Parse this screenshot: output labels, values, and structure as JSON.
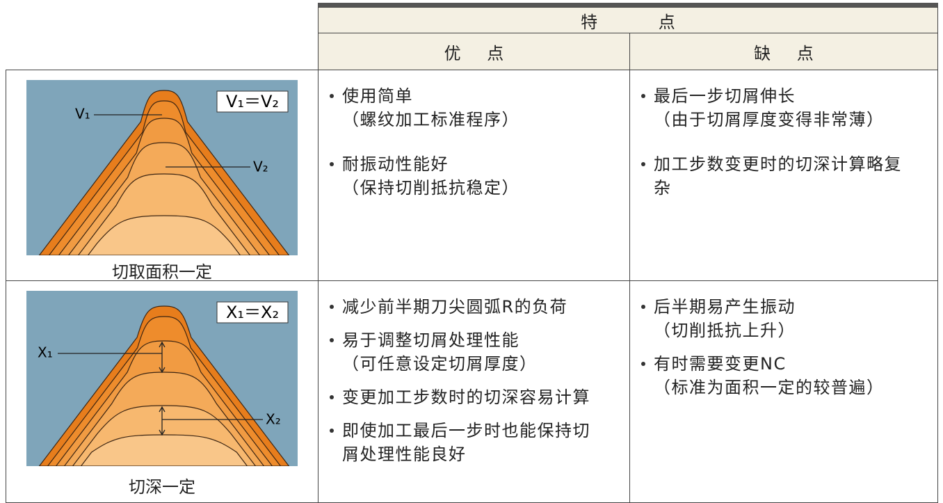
{
  "header": {
    "title": "特 点",
    "advantages": "优 点",
    "disadvantages": "缺 点"
  },
  "rows": [
    {
      "diagram": {
        "equation": "V₁＝V₂",
        "label_a": "V₁",
        "label_b": "V₂",
        "caption": "切取面积一定"
      },
      "advantages": [
        {
          "text": "使用简单",
          "note": "（螺纹加工标准程序）"
        },
        {
          "text": "耐振动性能好",
          "note": "（保持切削抵抗稳定）"
        }
      ],
      "disadvantages": [
        {
          "text": "最后一步切屑伸长",
          "note": "（由于切屑厚度变得非常薄）"
        },
        {
          "text": "加工步数变更时的切深计算略复杂"
        }
      ]
    },
    {
      "diagram": {
        "equation": "X₁＝X₂",
        "label_a": "X₁",
        "label_b": "X₂",
        "caption": "切深一定"
      },
      "advantages": [
        {
          "text": "减少前半期刀尖圆弧R的负荷"
        },
        {
          "text": "易于调整切屑处理性能",
          "note": "（可任意设定切屑厚度）"
        },
        {
          "text": "变更加工步数时的切深容易计算"
        },
        {
          "text": "即使加工最后一步时也能保持切屑处理性能良好"
        }
      ],
      "disadvantages": [
        {
          "text": "后半期易产生振动",
          "note": "（切削抵抗上升）"
        },
        {
          "text": "有时需要变更NC",
          "note": "（标准为面积一定的较普遍）"
        }
      ]
    }
  ]
}
